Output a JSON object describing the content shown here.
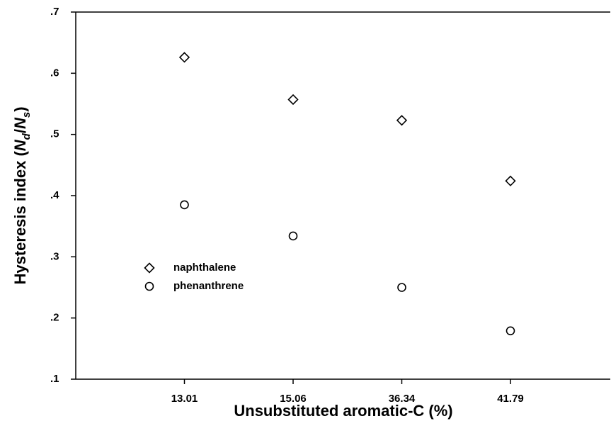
{
  "chart_data": {
    "type": "scatter",
    "xlabel": "Unsubstituted aromatic-C (%)",
    "ylabel_parts": [
      "Hysteresis index (",
      "N",
      "d",
      "/",
      "N",
      "s",
      ")"
    ],
    "categories": [
      "13.01",
      "15.06",
      "36.34",
      "41.79"
    ],
    "series": [
      {
        "name": "naphthalene",
        "marker": "diamond",
        "color": "#000000",
        "values": [
          0.626,
          0.557,
          0.523,
          0.424
        ]
      },
      {
        "name": "phenanthrene",
        "marker": "circle",
        "color": "#000000",
        "values": [
          0.385,
          0.334,
          0.25,
          0.179
        ]
      }
    ],
    "ylim": [
      0.1,
      0.7
    ],
    "yticks": [
      {
        "value": 0.1,
        "label": ".1"
      },
      {
        "value": 0.2,
        "label": ".2"
      },
      {
        "value": 0.3,
        "label": ".3"
      },
      {
        "value": 0.4,
        "label": ".4"
      },
      {
        "value": 0.5,
        "label": ".5"
      },
      {
        "value": 0.6,
        "label": ".6"
      },
      {
        "value": 0.7,
        "label": ".7"
      }
    ],
    "legend": "left"
  }
}
